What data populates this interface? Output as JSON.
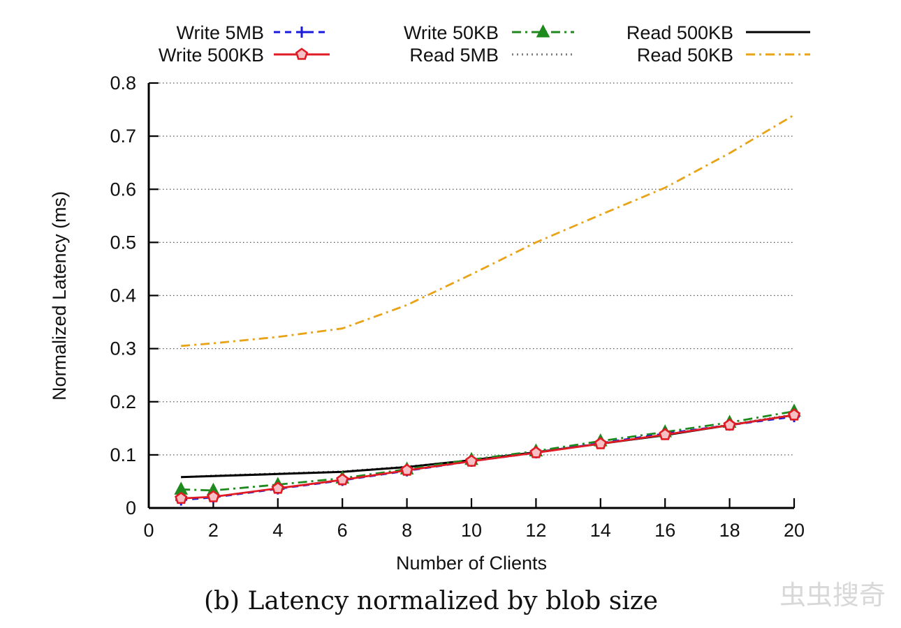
{
  "chart_data": {
    "type": "line",
    "xlabel": "Number of Clients",
    "ylabel": "Normalized Latency (ms)",
    "xlim": [
      0,
      20
    ],
    "ylim": [
      0,
      0.8
    ],
    "xticks": [
      0,
      2,
      4,
      6,
      8,
      10,
      12,
      14,
      16,
      18,
      20
    ],
    "yticks": [
      0,
      0.1,
      0.2,
      0.3,
      0.4,
      0.5,
      0.6,
      0.7,
      0.8
    ],
    "ytick_labels": [
      "0",
      "0.1",
      "0.2",
      "0.3",
      "0.4",
      "0.5",
      "0.6",
      "0.7",
      "0.8"
    ],
    "grid": "horizontal dotted",
    "legend_position": "top",
    "x": [
      1,
      2,
      4,
      6,
      8,
      10,
      12,
      14,
      16,
      18,
      20
    ],
    "series": [
      {
        "name": "Write 5MB",
        "color": "#1a1adb",
        "marker": "plus",
        "dash": "dashed",
        "values": [
          0.015,
          0.02,
          0.036,
          0.052,
          0.07,
          0.088,
          0.104,
          0.122,
          0.14,
          0.156,
          0.172
        ]
      },
      {
        "name": "Write 500KB",
        "color": "#e01b24",
        "marker": "pentagon",
        "dash": "solid",
        "values": [
          0.018,
          0.021,
          0.037,
          0.053,
          0.071,
          0.088,
          0.104,
          0.121,
          0.138,
          0.156,
          0.175
        ]
      },
      {
        "name": "Write 50KB",
        "color": "#1e8a1e",
        "marker": "triangle",
        "dash": "dashdot",
        "values": [
          0.035,
          0.033,
          0.044,
          0.056,
          0.073,
          0.091,
          0.107,
          0.126,
          0.143,
          0.161,
          0.182
        ]
      },
      {
        "name": "Read 5MB",
        "color": "#7a7a7a",
        "marker": "none",
        "dash": "dotted",
        "values": [
          0.058,
          0.061,
          0.065,
          0.069,
          0.078,
          0.09,
          0.105,
          0.121,
          0.138,
          0.157,
          0.176
        ]
      },
      {
        "name": "Read 500KB",
        "color": "#000000",
        "marker": "none",
        "dash": "solid",
        "values": [
          0.058,
          0.06,
          0.064,
          0.068,
          0.077,
          0.09,
          0.105,
          0.121,
          0.137,
          0.156,
          0.175
        ]
      },
      {
        "name": "Read 50KB",
        "color": "#e8a317",
        "marker": "none",
        "dash": "dashdot",
        "values": [
          0.305,
          0.31,
          0.322,
          0.338,
          0.382,
          0.44,
          0.5,
          0.552,
          0.603,
          0.668,
          0.74
        ]
      }
    ],
    "caption": "(b) Latency normalized by blob size"
  },
  "watermark": "虫虫搜奇"
}
